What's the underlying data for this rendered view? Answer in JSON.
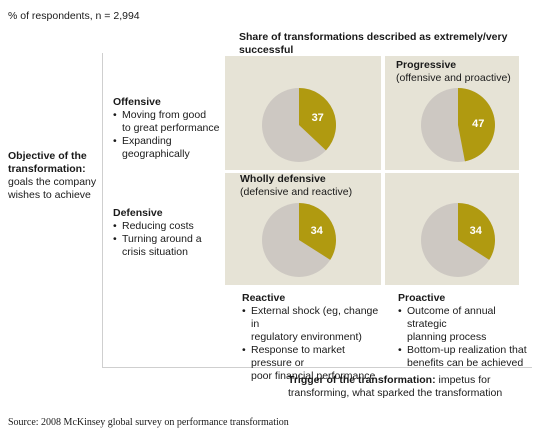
{
  "header": {
    "respondents": "% of respondents, n = 2,994",
    "chart_title": "Share of transformations described as extremely/very successful"
  },
  "y_axis": {
    "title": "Objective of the transformation:",
    "subtitle_lines": [
      "goals the company",
      "wishes to achieve"
    ]
  },
  "objectives": {
    "offensive": {
      "title": "Offensive",
      "items": [
        [
          "Moving from good",
          "to great performance"
        ],
        [
          "Expanding",
          "geographically"
        ]
      ]
    },
    "defensive": {
      "title": "Defensive",
      "items": [
        [
          "Reducing costs"
        ],
        [
          "Turning around a",
          "crisis situation"
        ]
      ]
    }
  },
  "triggers": {
    "reactive": {
      "title": "Reactive",
      "items": [
        [
          "External shock (eg, change in",
          "regulatory environment)"
        ],
        [
          "Response to market pressure or",
          "poor financial performance"
        ]
      ]
    },
    "proactive": {
      "title": "Proactive",
      "items": [
        [
          "Outcome of annual strategic",
          "planning process"
        ],
        [
          "Bottom-up realization that",
          "benefits can be achieved"
        ]
      ]
    }
  },
  "quadrant_labels": {
    "progressive": {
      "title": "Progressive",
      "sub": "(offensive and proactive)"
    },
    "wholly_defensive": {
      "title": "Wholly defensive",
      "sub": "(defensive and reactive)"
    }
  },
  "x_axis": {
    "title": "Trigger of the transformation:",
    "rest": " impetus for",
    "lines": [
      "transforming, what sparked the transformation"
    ]
  },
  "source": "Source: 2008 McKinsey global survey on performance transformation",
  "colors": {
    "highlight": "#b09a10",
    "remainder": "#cdc8c2",
    "cell": "#e6e3d6"
  },
  "chart_data": {
    "type": "pie",
    "title": "Share of transformations described as extremely/very successful",
    "unit": "%",
    "rows": [
      "Offensive",
      "Defensive"
    ],
    "columns": [
      "Reactive",
      "Proactive"
    ],
    "series": [
      {
        "row": "Offensive",
        "column": "Reactive",
        "value": 37
      },
      {
        "row": "Offensive",
        "column": "Proactive",
        "value": 47
      },
      {
        "row": "Defensive",
        "column": "Reactive",
        "value": 34
      },
      {
        "row": "Defensive",
        "column": "Proactive",
        "value": 34
      }
    ]
  }
}
